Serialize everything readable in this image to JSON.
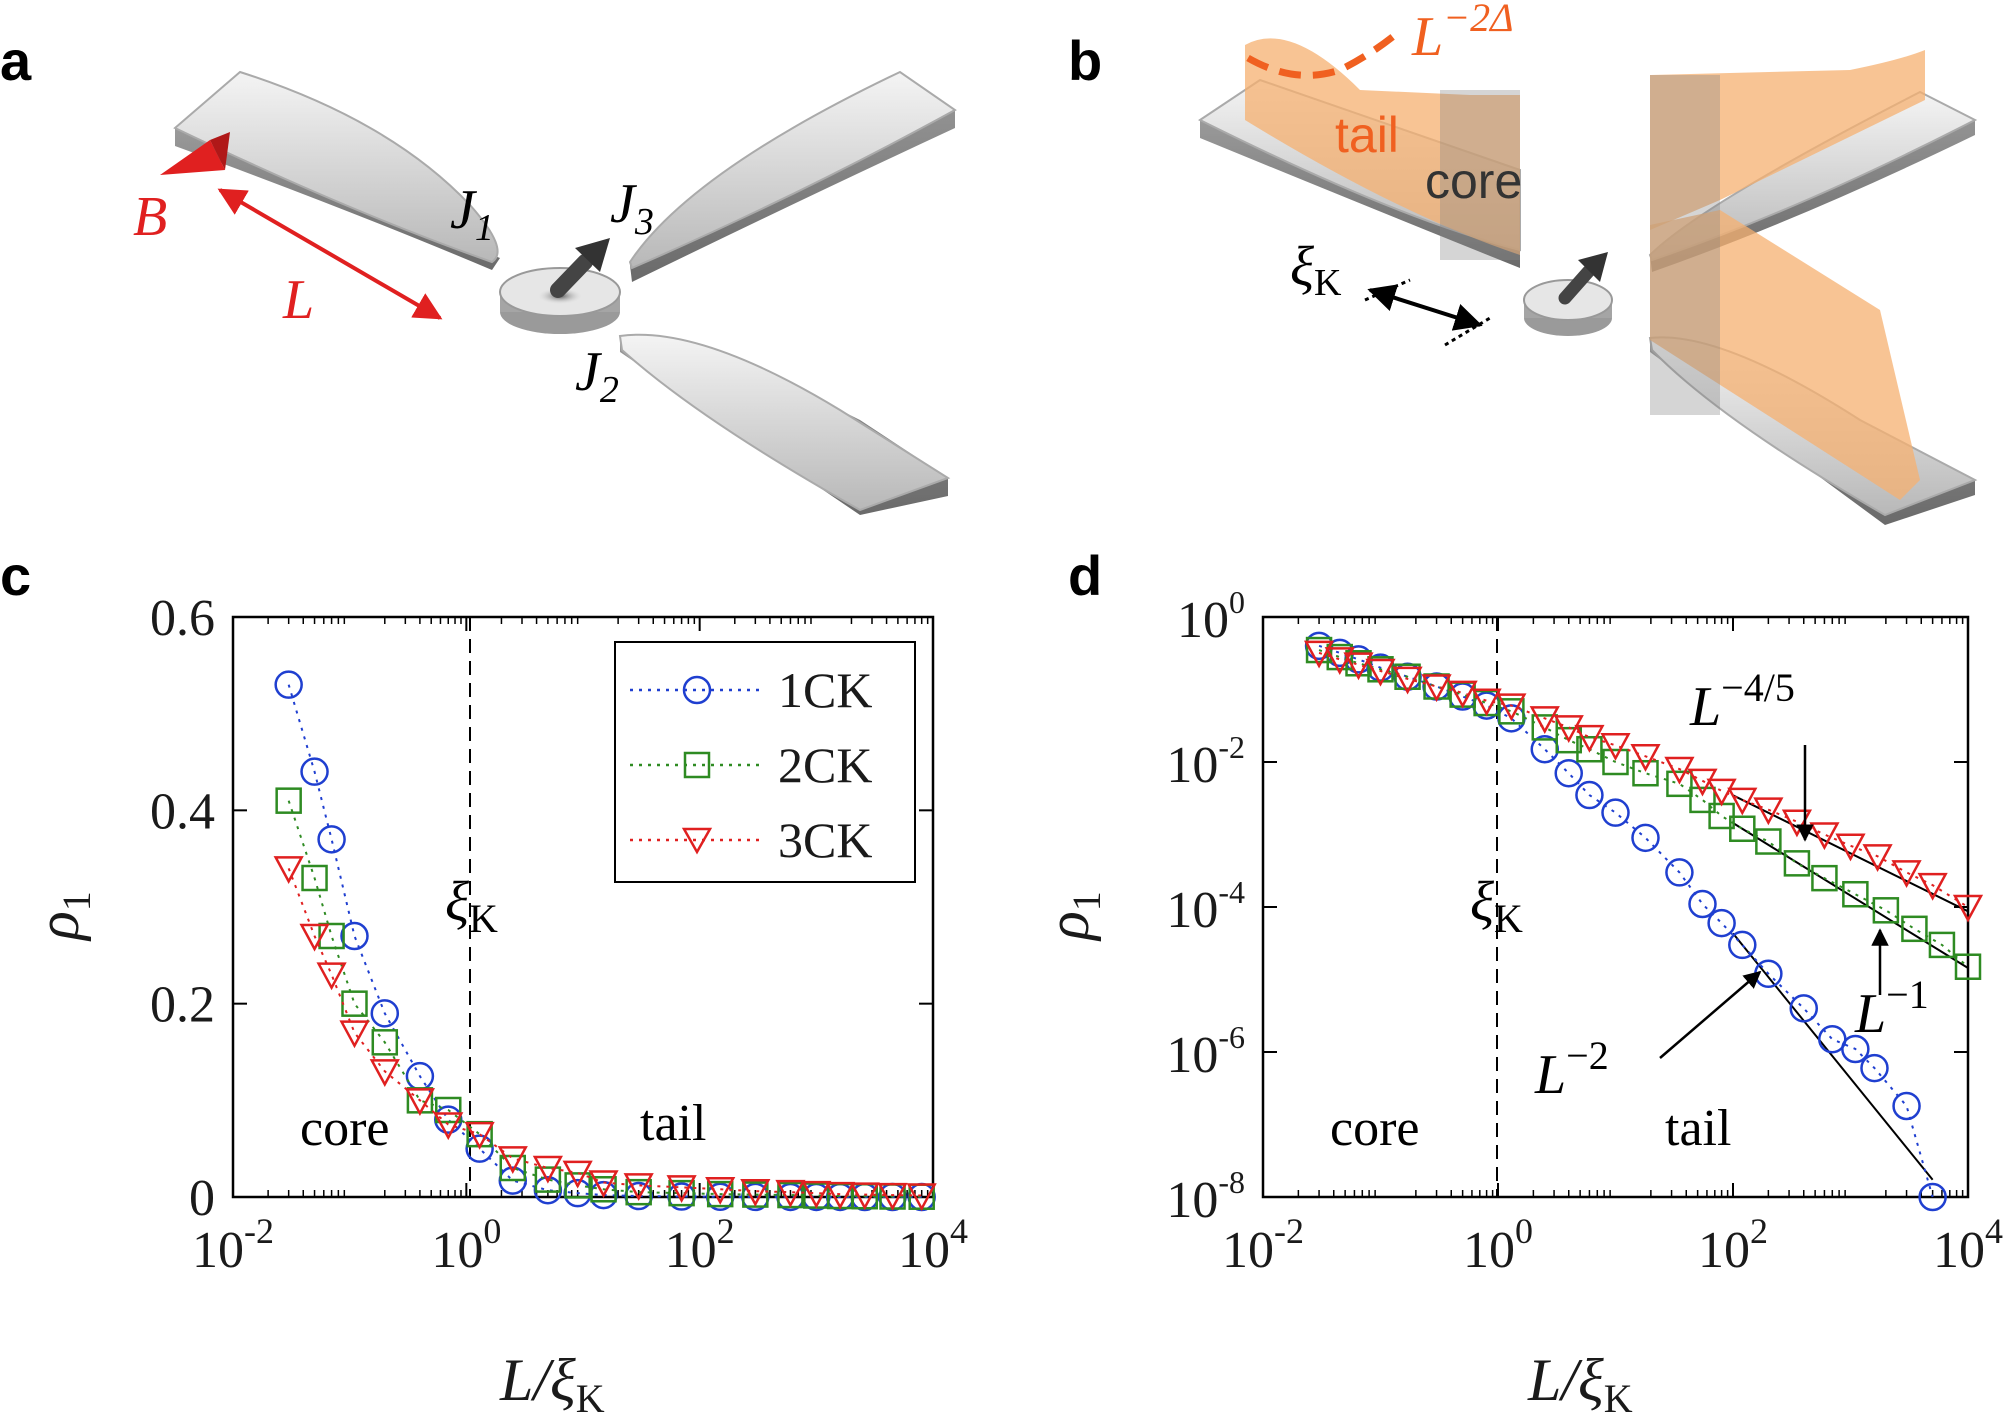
{
  "panels": {
    "a": "a",
    "b": "b",
    "c": "c",
    "d": "d"
  },
  "schematic_a": {
    "field": "B",
    "length": "L",
    "j1": "J",
    "j1_sub": "1",
    "j2": "J",
    "j2_sub": "2",
    "j3": "J",
    "j3_sub": "3",
    "field_color": "#e02020"
  },
  "schematic_b": {
    "tail": "tail",
    "core": "core",
    "xi": "ξ",
    "xi_sub": "K",
    "scaling": "L",
    "scaling_exp": "−2Δ",
    "tail_color": "#f08040",
    "cloud_color": "#f5b070"
  },
  "chart_data": [
    {
      "type": "scatter",
      "panel": "c",
      "xscale": "log",
      "xlim_exp": [
        -2,
        4
      ],
      "ylim": [
        0,
        0.6
      ],
      "xticks": [
        {
          "label": "10",
          "exp": "-2"
        },
        {
          "label": "10",
          "exp": "0"
        },
        {
          "label": "10",
          "exp": "2"
        },
        {
          "label": "10",
          "exp": "4"
        }
      ],
      "yticks": [
        "0",
        "0.2",
        "0.4",
        "0.6"
      ],
      "ylabel": "ρ",
      "ylabel_sub": "1",
      "xlabel": "L/ξ",
      "xlabel_sub": "K",
      "annotations": {
        "core": "core",
        "tail": "tail",
        "xi": "ξ",
        "xi_sub": "K"
      },
      "legend_position": "top-right",
      "series": [
        {
          "name": "1CK",
          "marker": "circle",
          "color": "#1f3fd0",
          "points": [
            [
              0.03,
              0.53
            ],
            [
              0.05,
              0.44
            ],
            [
              0.07,
              0.37
            ],
            [
              0.11,
              0.27
            ],
            [
              0.2,
              0.19
            ],
            [
              0.4,
              0.125
            ],
            [
              0.7,
              0.08
            ],
            [
              1.3,
              0.05
            ],
            [
              2.5,
              0.017
            ],
            [
              5,
              0.007
            ],
            [
              9,
              0.004
            ],
            [
              15,
              0.002
            ],
            [
              30,
              0.001
            ],
            [
              70,
              0.0005
            ],
            [
              150,
              0.0002
            ],
            [
              300,
              0.0001
            ],
            [
              600,
              5e-05
            ],
            [
              1000,
              3e-05
            ],
            [
              1600,
              2e-05
            ],
            [
              2600,
              1e-05
            ],
            [
              4500,
              5e-06
            ],
            [
              8000,
              1e-06
            ]
          ]
        },
        {
          "name": "2CK",
          "marker": "square",
          "color": "#2e8b22",
          "points": [
            [
              0.03,
              0.41
            ],
            [
              0.05,
              0.33
            ],
            [
              0.07,
              0.27
            ],
            [
              0.11,
              0.2
            ],
            [
              0.2,
              0.16
            ],
            [
              0.4,
              0.1
            ],
            [
              0.7,
              0.09
            ],
            [
              1.3,
              0.065
            ],
            [
              2.5,
              0.03
            ],
            [
              5,
              0.018
            ],
            [
              9,
              0.012
            ],
            [
              15,
              0.008
            ],
            [
              30,
              0.005
            ],
            [
              70,
              0.004
            ],
            [
              150,
              0.003
            ],
            [
              300,
              0.0025
            ],
            [
              600,
              0.002
            ],
            [
              1000,
              0.0015
            ],
            [
              1600,
              0.001
            ],
            [
              2600,
              0.0008
            ],
            [
              4500,
              0.0005
            ],
            [
              8000,
              0.0003
            ]
          ]
        },
        {
          "name": "3CK",
          "marker": "triangle-down",
          "color": "#e02020",
          "points": [
            [
              0.03,
              0.34
            ],
            [
              0.05,
              0.27
            ],
            [
              0.07,
              0.23
            ],
            [
              0.11,
              0.17
            ],
            [
              0.2,
              0.13
            ],
            [
              0.4,
              0.1
            ],
            [
              0.7,
              0.075
            ],
            [
              1.3,
              0.065
            ],
            [
              2.5,
              0.04
            ],
            [
              5,
              0.03
            ],
            [
              9,
              0.025
            ],
            [
              15,
              0.015
            ],
            [
              30,
              0.012
            ],
            [
              70,
              0.01
            ],
            [
              150,
              0.008
            ],
            [
              300,
              0.006
            ],
            [
              600,
              0.005
            ],
            [
              1000,
              0.004
            ],
            [
              1600,
              0.003
            ],
            [
              2600,
              0.0025
            ],
            [
              4500,
              0.002
            ],
            [
              8000,
              0.0015
            ]
          ]
        }
      ]
    },
    {
      "type": "scatter",
      "panel": "d",
      "xscale": "log",
      "yscale": "log",
      "xlim_exp": [
        -2,
        4
      ],
      "ylim_exp": [
        -8,
        0
      ],
      "xticks": [
        {
          "label": "10",
          "exp": "-2"
        },
        {
          "label": "10",
          "exp": "0"
        },
        {
          "label": "10",
          "exp": "2"
        },
        {
          "label": "10",
          "exp": "4"
        }
      ],
      "yticks": [
        {
          "label": "10",
          "exp": "0"
        },
        {
          "label": "10",
          "exp": "-2"
        },
        {
          "label": "10",
          "exp": "-4"
        },
        {
          "label": "10",
          "exp": "-6"
        },
        {
          "label": "10",
          "exp": "-8"
        }
      ],
      "ylabel": "ρ",
      "ylabel_sub": "1",
      "xlabel": "L/ξ",
      "xlabel_sub": "K",
      "annotations": {
        "core": "core",
        "tail": "tail",
        "xi": "ξ",
        "xi_sub": "K",
        "fit_3ck": "L",
        "fit_3ck_exp": "−4/5",
        "fit_2ck": "L",
        "fit_2ck_exp": "−1",
        "fit_1ck": "L",
        "fit_1ck_exp": "−2"
      },
      "series": [
        {
          "name": "1CK",
          "marker": "circle",
          "color": "#1f3fd0",
          "points": [
            [
              0.03,
              0.4
            ],
            [
              0.045,
              0.32
            ],
            [
              0.065,
              0.26
            ],
            [
              0.1,
              0.2
            ],
            [
              0.17,
              0.15
            ],
            [
              0.3,
              0.11
            ],
            [
              0.5,
              0.08
            ],
            [
              0.8,
              0.06
            ],
            [
              1.3,
              0.04
            ],
            [
              2.5,
              0.015
            ],
            [
              4,
              0.007
            ],
            [
              6,
              0.0035
            ],
            [
              10,
              0.002
            ],
            [
              18,
              0.0009
            ],
            [
              35,
              0.0003
            ],
            [
              55,
              0.00011
            ],
            [
              80,
              6e-05
            ],
            [
              120,
              3e-05
            ],
            [
              200,
              1.2e-05
            ],
            [
              400,
              4e-06
            ],
            [
              700,
              1.5e-06
            ],
            [
              1100,
              1.1e-06
            ],
            [
              1600,
              6e-07
            ],
            [
              3000,
              1.8e-07
            ],
            [
              5000,
              1e-08
            ]
          ]
        },
        {
          "name": "2CK",
          "marker": "square",
          "color": "#2e8b22",
          "points": [
            [
              0.03,
              0.35
            ],
            [
              0.045,
              0.28
            ],
            [
              0.065,
              0.23
            ],
            [
              0.1,
              0.19
            ],
            [
              0.17,
              0.15
            ],
            [
              0.3,
              0.11
            ],
            [
              0.5,
              0.085
            ],
            [
              0.8,
              0.065
            ],
            [
              1.3,
              0.05
            ],
            [
              2.5,
              0.03
            ],
            [
              4,
              0.02
            ],
            [
              6,
              0.015
            ],
            [
              10,
              0.01
            ],
            [
              18,
              0.007
            ],
            [
              35,
              0.005
            ],
            [
              55,
              0.003
            ],
            [
              80,
              0.0018
            ],
            [
              120,
              0.0012
            ],
            [
              200,
              0.0008
            ],
            [
              350,
              0.0004
            ],
            [
              600,
              0.00025
            ],
            [
              1100,
              0.00015
            ],
            [
              2000,
              9e-05
            ],
            [
              3500,
              5e-05
            ],
            [
              6000,
              3e-05
            ],
            [
              10000,
              1.5e-05
            ]
          ]
        },
        {
          "name": "3CK",
          "marker": "triangle-down",
          "color": "#e02020",
          "points": [
            [
              0.03,
              0.32
            ],
            [
              0.045,
              0.26
            ],
            [
              0.065,
              0.22
            ],
            [
              0.1,
              0.18
            ],
            [
              0.17,
              0.14
            ],
            [
              0.3,
              0.11
            ],
            [
              0.5,
              0.09
            ],
            [
              0.8,
              0.07
            ],
            [
              1.3,
              0.06
            ],
            [
              2.5,
              0.04
            ],
            [
              4,
              0.03
            ],
            [
              6,
              0.022
            ],
            [
              10,
              0.017
            ],
            [
              18,
              0.012
            ],
            [
              35,
              0.008
            ],
            [
              55,
              0.0055
            ],
            [
              80,
              0.004
            ],
            [
              120,
              0.003
            ],
            [
              200,
              0.0022
            ],
            [
              350,
              0.0015
            ],
            [
              600,
              0.001
            ],
            [
              1000,
              0.0007
            ],
            [
              1700,
              0.0005
            ],
            [
              3000,
              0.0003
            ],
            [
              5000,
              0.0002
            ],
            [
              10000,
              0.0001
            ]
          ]
        }
      ],
      "fits": [
        {
          "series": "3CK",
          "slope": -0.8,
          "x_from": 100,
          "x_to": 10000
        },
        {
          "series": "2CK",
          "slope": -1,
          "x_from": 100,
          "x_to": 10000
        },
        {
          "series": "1CK",
          "slope": -2,
          "x_from": 100,
          "x_to": 5000
        }
      ]
    }
  ]
}
